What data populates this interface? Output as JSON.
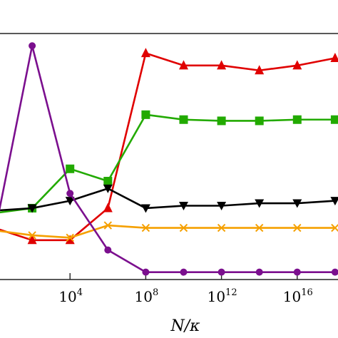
{
  "chart_data": {
    "type": "line",
    "xlabel": "N/κ",
    "x_scale": "log10",
    "xlim": [
      1,
      1e+20
    ],
    "ylim": [
      0,
      1
    ],
    "grid": false,
    "x_ticks": [
      {
        "value": 10000,
        "base": "10",
        "exp": "4"
      },
      {
        "value": 100000000,
        "base": "10",
        "exp": "8"
      },
      {
        "value": 1000000000000,
        "base": "10",
        "exp": "12"
      },
      {
        "value": 10000000000000000,
        "base": "10",
        "exp": "16"
      }
    ],
    "x": [
      1,
      100,
      10000,
      1000000,
      100000000,
      10000000000,
      1000000000000,
      100000000000000,
      10000000000000000,
      1000000000000000000
    ],
    "series": [
      {
        "color": "#e00000",
        "marker": "triangle-up",
        "values": [
          0.21,
          0.16,
          0.16,
          0.29,
          0.92,
          0.87,
          0.87,
          0.85,
          0.87,
          0.9
        ]
      },
      {
        "color": "#22aa00",
        "marker": "square",
        "values": [
          0.27,
          0.29,
          0.45,
          0.4,
          0.67,
          0.65,
          0.645,
          0.645,
          0.65,
          0.65
        ]
      },
      {
        "color": "#000000",
        "marker": "triangle-down",
        "values": [
          0.28,
          0.29,
          0.32,
          0.37,
          0.29,
          0.3,
          0.3,
          0.31,
          0.31,
          0.32
        ]
      },
      {
        "color": "#f5a000",
        "marker": "x",
        "values": [
          0.2,
          0.18,
          0.17,
          0.22,
          0.21,
          0.21,
          0.21,
          0.21,
          0.21,
          0.21
        ]
      },
      {
        "color": "#7b0f8e",
        "marker": "circle",
        "values": [
          0.18,
          0.95,
          0.35,
          0.12,
          0.03,
          0.03,
          0.03,
          0.03,
          0.03,
          0.03
        ]
      }
    ]
  }
}
